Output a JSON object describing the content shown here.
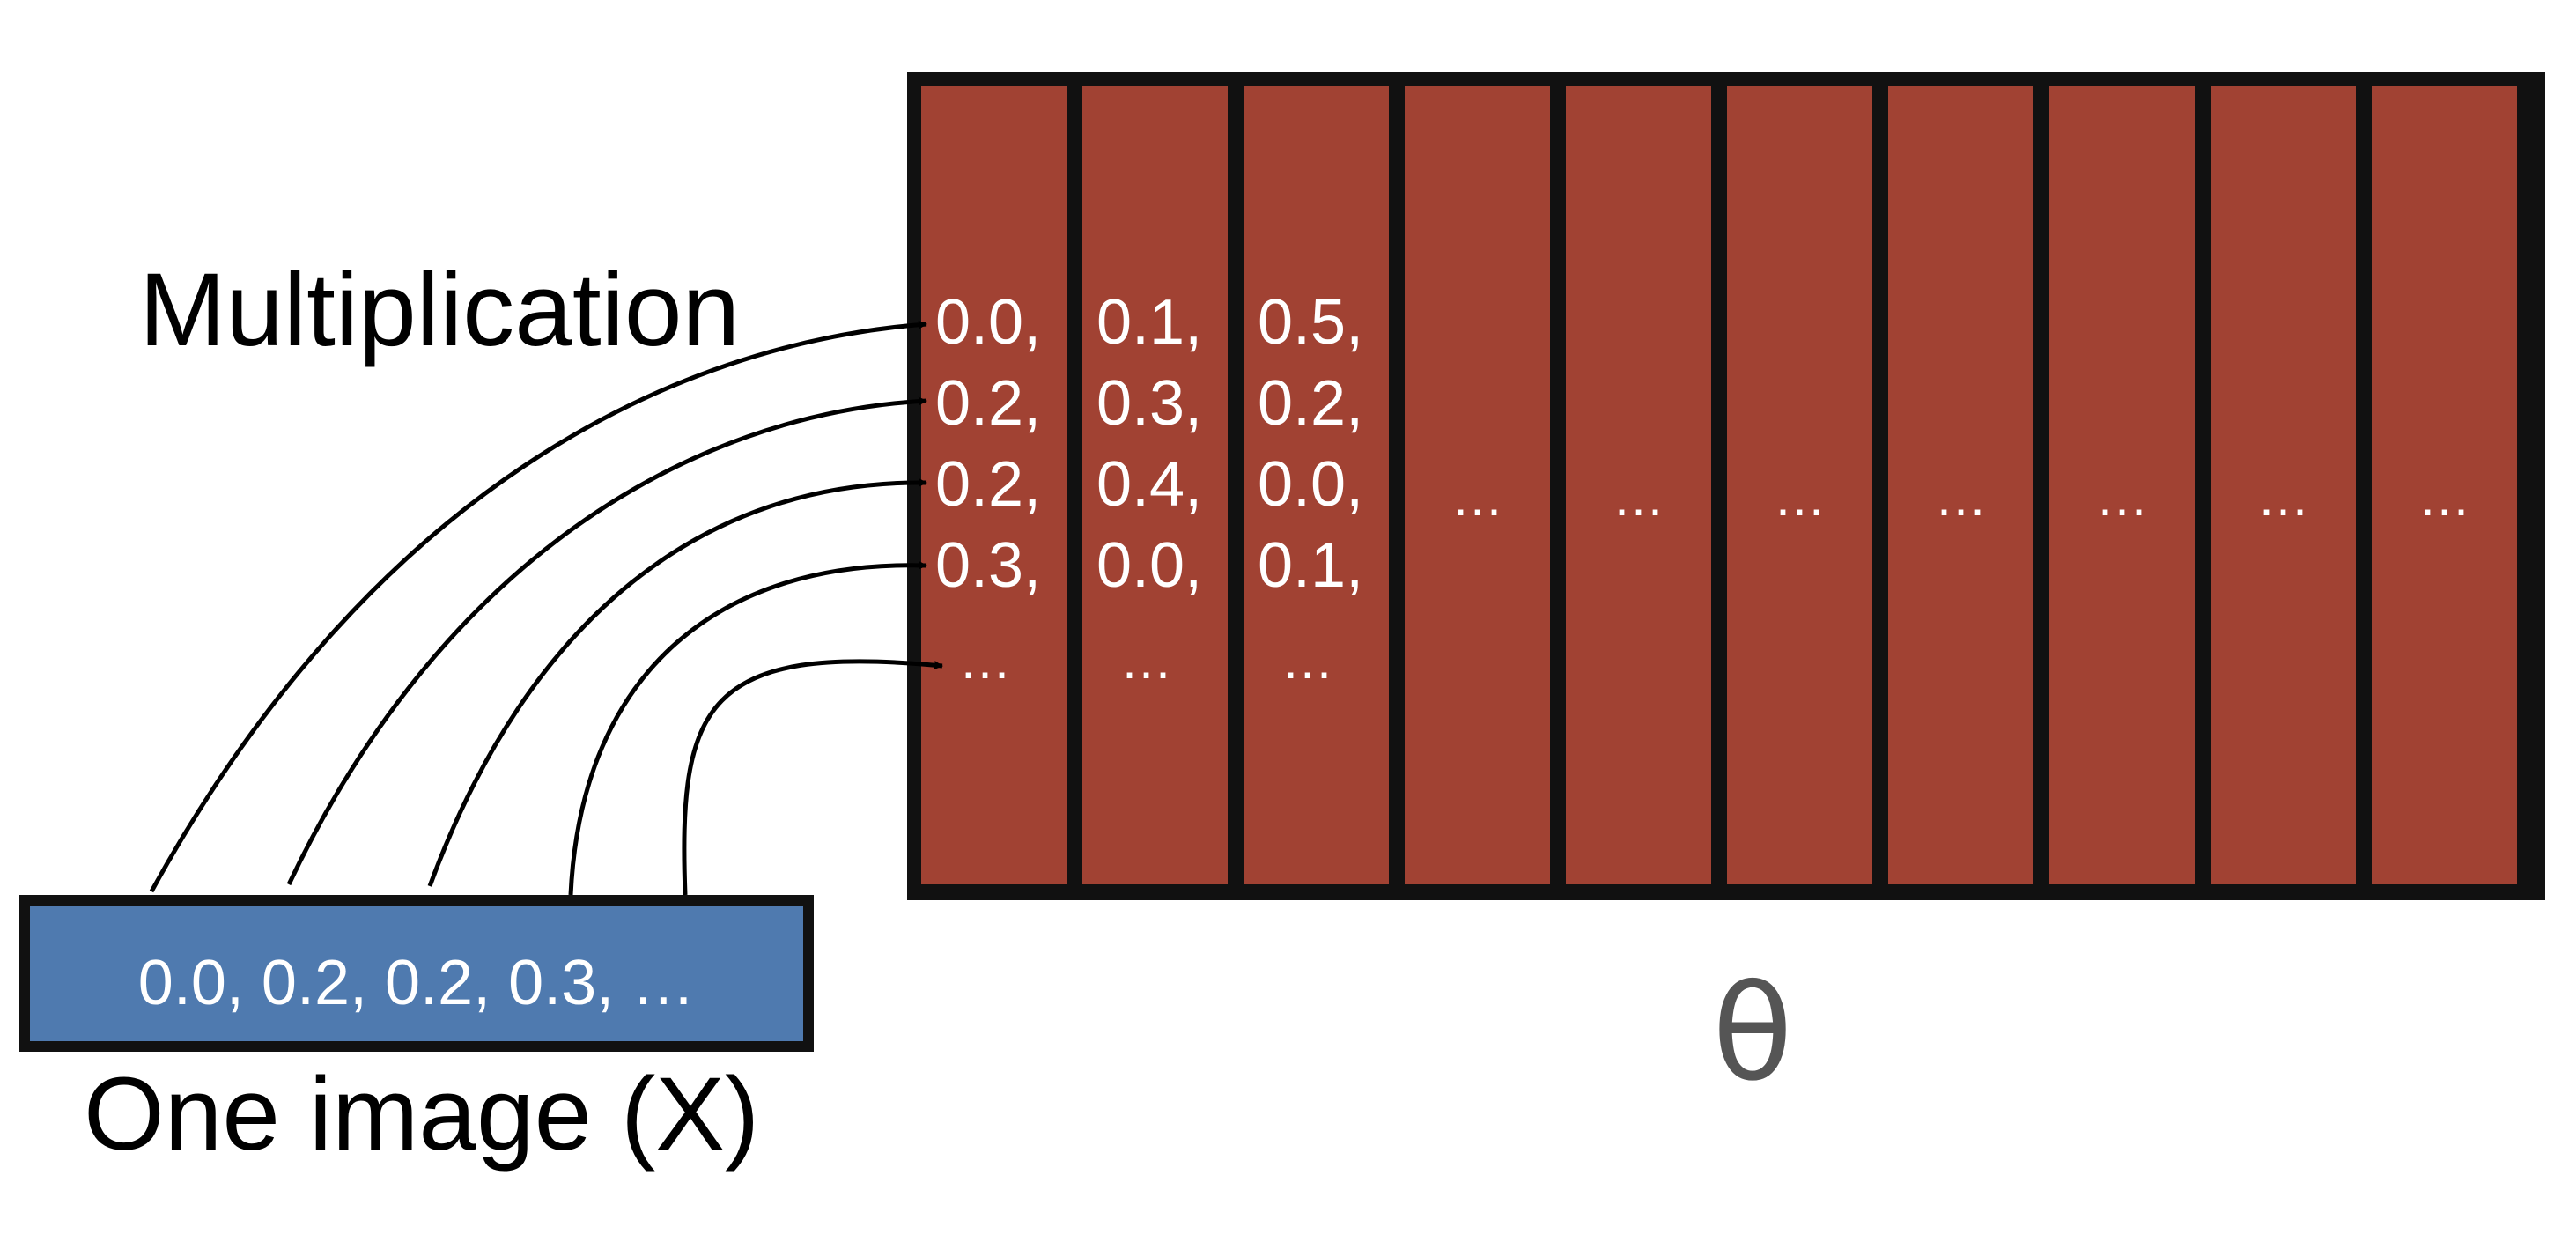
{
  "labels": {
    "multiplication": "Multiplication",
    "one_image": "One image (X)",
    "theta": "θ"
  },
  "input_vector": {
    "text": "0.0, 0.2, 0.2, 0.3, …",
    "fill_color": "#4f7aaf"
  },
  "matrix": {
    "column_color": "#a14233",
    "border_color": "#111111",
    "columns": [
      {
        "values": [
          "0.0,",
          "0.2,",
          "0.2,",
          "0.3,",
          "…"
        ]
      },
      {
        "values": [
          "0.1,",
          "0.3,",
          "0.4,",
          "0.0,",
          "…"
        ]
      },
      {
        "values": [
          "0.5,",
          "0.2,",
          "0.0,",
          "0.1,",
          "…"
        ]
      },
      {
        "values": [
          "…"
        ]
      },
      {
        "values": [
          "…"
        ]
      },
      {
        "values": [
          "…"
        ]
      },
      {
        "values": [
          "…"
        ]
      },
      {
        "values": [
          "…"
        ]
      },
      {
        "values": [
          "…"
        ]
      },
      {
        "values": [
          "…"
        ]
      }
    ]
  },
  "arrows": {
    "count": 5,
    "color": "#000000"
  }
}
